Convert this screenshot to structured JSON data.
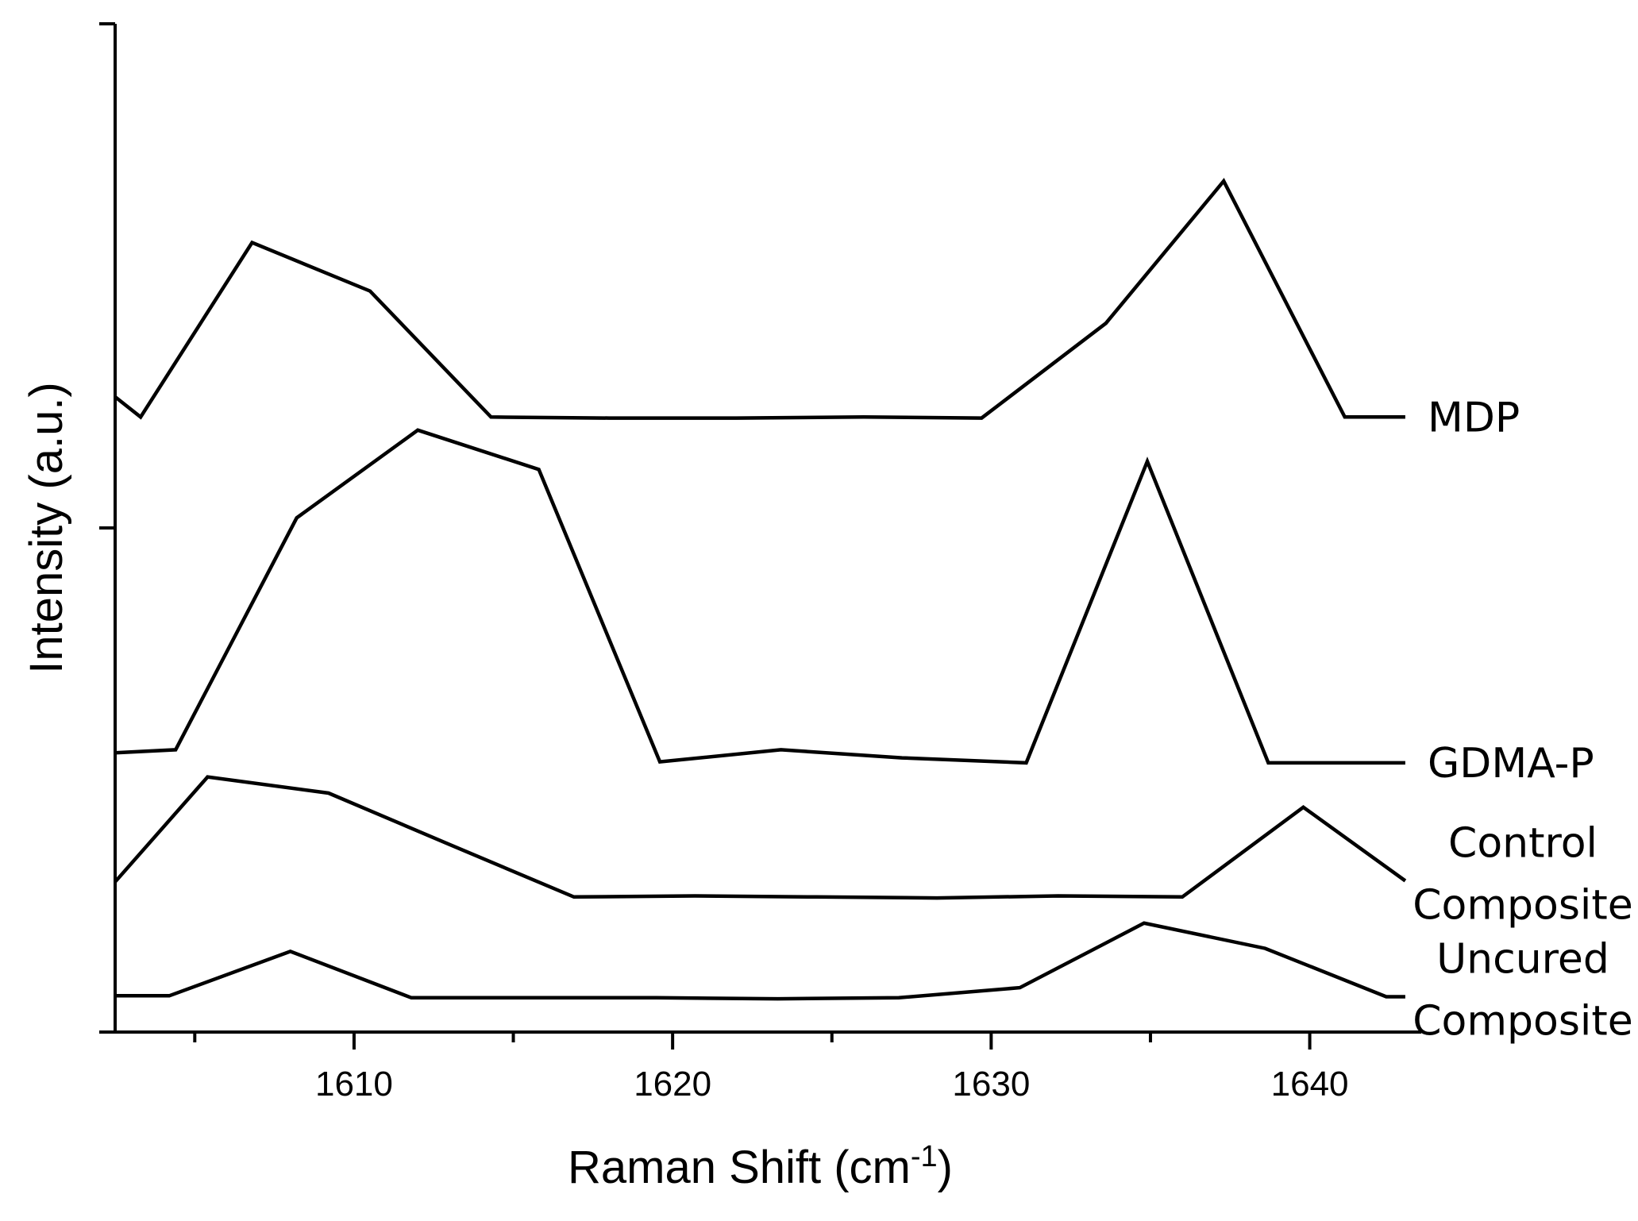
{
  "chart_data": {
    "type": "line",
    "xlabel": "Raman Shift (cm",
    "xlabel_sup": "-1",
    "xlabel_close": ")",
    "ylabel": "Intensity (a.u.)",
    "xlim": [
      1602.5,
      1643.5
    ],
    "x_ticks_major": [
      1610,
      1620,
      1630,
      1640
    ],
    "x_tick_labels": [
      "1610",
      "1620",
      "1630",
      "1640"
    ],
    "x_ticks_minor": [
      1605,
      1615,
      1625,
      1635
    ],
    "y_ticks": [
      0,
      0.5,
      1
    ],
    "ylim": [
      0,
      1
    ],
    "grid": false,
    "legend": "inline labels at right end of each trace",
    "series": [
      {
        "name_lines": [
          "MDP"
        ],
        "x": [
          1602.5,
          1603.3,
          1606.8,
          1610.5,
          1614.3,
          1618,
          1622,
          1626,
          1629.7,
          1633.6,
          1637.3,
          1641.1,
          1643
        ],
        "y": [
          0.63,
          0.61,
          0.783,
          0.735,
          0.61,
          0.609,
          0.609,
          0.61,
          0.609,
          0.703,
          0.844,
          0.61,
          0.61
        ]
      },
      {
        "name_lines": [
          "GDMA-P"
        ],
        "x": [
          1602.5,
          1604.4,
          1608.2,
          1612,
          1615.8,
          1619.6,
          1623.4,
          1627.2,
          1631.1,
          1634.9,
          1638.7,
          1643
        ],
        "y": [
          0.277,
          0.28,
          0.51,
          0.597,
          0.558,
          0.268,
          0.28,
          0.272,
          0.267,
          0.566,
          0.267,
          0.267
        ]
      },
      {
        "name_lines": [
          "Control",
          "Composite"
        ],
        "x": [
          1602.5,
          1605.4,
          1609.2,
          1613,
          1616.9,
          1620.7,
          1624.5,
          1628.3,
          1632.1,
          1636,
          1639.8,
          1643
        ],
        "y": [
          0.149,
          0.253,
          0.237,
          0.186,
          0.134,
          0.135,
          0.134,
          0.133,
          0.135,
          0.134,
          0.223,
          0.15
        ]
      },
      {
        "name_lines": [
          "Uncured",
          "Composite"
        ],
        "x": [
          1602.5,
          1604.2,
          1608,
          1611.8,
          1615.6,
          1619.5,
          1623.3,
          1627.1,
          1630.9,
          1634.8,
          1638.6,
          1642.4,
          1643
        ],
        "y": [
          0.036,
          0.036,
          0.08,
          0.034,
          0.034,
          0.034,
          0.033,
          0.034,
          0.044,
          0.108,
          0.083,
          0.035,
          0.035
        ]
      }
    ]
  }
}
